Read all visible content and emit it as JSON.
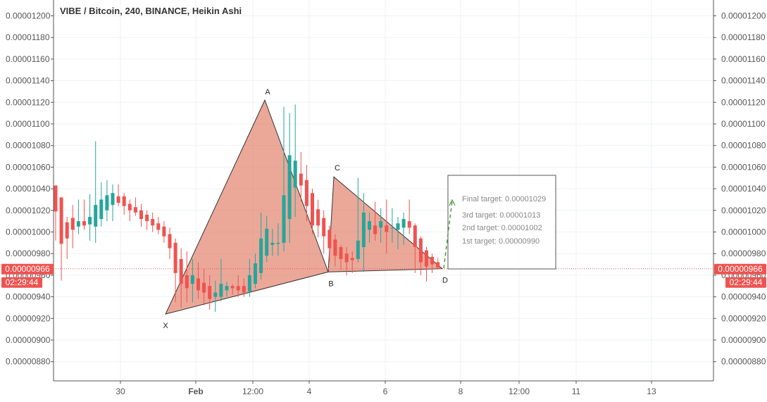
{
  "header": {
    "title": "VIBE / Bitcoin, 240, BINANCE, Heikin Ashi"
  },
  "price_axis": {
    "ticks": [
      "0.00001200",
      "0.00001180",
      "0.00001160",
      "0.00001140",
      "0.00001120",
      "0.00001100",
      "0.00001080",
      "0.00001060",
      "0.00001040",
      "0.00001020",
      "0.00001000",
      "0.00000980",
      "0.00000960",
      "0.00000940",
      "0.00000920",
      "0.00000900",
      "0.00000880"
    ],
    "current_price": "0.00000966",
    "countdown": "02:29:44"
  },
  "time_axis": {
    "labels": [
      {
        "text": "30",
        "bold": false
      },
      {
        "text": "Feb",
        "bold": true
      },
      {
        "text": "12:00",
        "bold": false
      },
      {
        "text": "4",
        "bold": false
      },
      {
        "text": "6",
        "bold": false
      },
      {
        "text": "8",
        "bold": false
      },
      {
        "text": "12:00",
        "bold": false
      },
      {
        "text": "11",
        "bold": false
      },
      {
        "text": "13",
        "bold": false
      }
    ]
  },
  "pattern": {
    "points": [
      {
        "label": "X",
        "price": 9.24e-06
      },
      {
        "label": "A",
        "price": 1.122e-05
      },
      {
        "label": "B",
        "price": 9.63e-06
      },
      {
        "label": "C",
        "price": 1.051e-05
      },
      {
        "label": "D",
        "price": 9.66e-06
      }
    ]
  },
  "targets_box": {
    "lines": [
      "Final target: 0.00001029",
      "3rd target: 0.00001013",
      "2nd target: 0.00001002",
      "1st target: 0.00000990"
    ]
  },
  "colors": {
    "up": "#26a69a",
    "down": "#ef5350",
    "pattern_fill": "#e07a63",
    "price_line": "#ef5350",
    "target_arrow": "#4c9a3c",
    "grid": "#eef1f4"
  },
  "chart_data": {
    "type": "candlestick",
    "title": "VIBE / Bitcoin, 240, BINANCE, Heikin Ashi",
    "ylim": [
      8.75e-06,
      1.205e-05
    ],
    "candles": [
      {
        "o": 1.043e-05,
        "h": 1.043e-05,
        "l": 9.92e-06,
        "c": 1.019e-05
      },
      {
        "o": 1.032e-05,
        "h": 1.032e-05,
        "l": 9.55e-06,
        "c": 9.89e-06
      },
      {
        "o": 1.009e-05,
        "h": 1.014e-05,
        "l": 9.75e-06,
        "c": 9.94e-06
      },
      {
        "o": 1.013e-05,
        "h": 1.025e-05,
        "l": 9.85e-06,
        "c": 1.002e-05
      },
      {
        "o": 1.005e-05,
        "h": 1.03e-05,
        "l": 9.98e-06,
        "c": 1.01e-05
      },
      {
        "o": 1.01e-05,
        "h": 1.03e-05,
        "l": 1.002e-05,
        "c": 1.006e-05
      },
      {
        "o": 1.007e-05,
        "h": 1.035e-05,
        "l": 9.92e-06,
        "c": 1.014e-05
      },
      {
        "o": 1.005e-05,
        "h": 1.084e-05,
        "l": 9.9e-06,
        "c": 1.025e-05
      },
      {
        "o": 1.012e-05,
        "h": 1.046e-05,
        "l": 1.005e-05,
        "c": 1.03e-05
      },
      {
        "o": 1.02e-05,
        "h": 1.048e-05,
        "l": 1.01e-05,
        "c": 1.034e-05
      },
      {
        "o": 1.025e-05,
        "h": 1.044e-05,
        "l": 1.01e-05,
        "c": 1.036e-05
      },
      {
        "o": 1.033e-05,
        "h": 1.044e-05,
        "l": 1.024e-05,
        "c": 1.027e-05
      },
      {
        "o": 1.033e-05,
        "h": 1.036e-05,
        "l": 1.016e-05,
        "c": 1.024e-05
      },
      {
        "o": 1.026e-05,
        "h": 1.03e-05,
        "l": 1.01e-05,
        "c": 1.02e-05
      },
      {
        "o": 1.023e-05,
        "h": 1.032e-05,
        "l": 1.015e-05,
        "c": 1.018e-05
      },
      {
        "o": 1.02e-05,
        "h": 1.026e-05,
        "l": 1.005e-05,
        "c": 1.012e-05
      },
      {
        "o": 1.016e-05,
        "h": 1.02e-05,
        "l": 1.002e-05,
        "c": 1.01e-05
      },
      {
        "o": 1.012e-05,
        "h": 1.018e-05,
        "l": 1e-05,
        "c": 1.006e-05
      },
      {
        "o": 1.008e-05,
        "h": 1.014e-05,
        "l": 9.98e-06,
        "c": 1.002e-05
      },
      {
        "o": 1.005e-05,
        "h": 1.01e-05,
        "l": 9.9e-06,
        "c": 9.96e-06
      },
      {
        "o": 9.98e-06,
        "h": 1.004e-05,
        "l": 9.75e-06,
        "c": 9.85e-06
      },
      {
        "o": 9.9e-06,
        "h": 9.94e-06,
        "l": 9.35e-06,
        "c": 9.62e-06
      },
      {
        "o": 9.75e-06,
        "h": 9.85e-06,
        "l": 9.3e-06,
        "c": 9.52e-06
      },
      {
        "o": 9.6e-06,
        "h": 9.82e-06,
        "l": 9.35e-06,
        "c": 9.48e-06
      },
      {
        "o": 9.52e-06,
        "h": 9.75e-06,
        "l": 9.35e-06,
        "c": 9.6e-06
      },
      {
        "o": 9.57e-06,
        "h": 9.72e-06,
        "l": 9.38e-06,
        "c": 9.46e-06
      },
      {
        "o": 9.53e-06,
        "h": 9.66e-06,
        "l": 9.32e-06,
        "c": 9.44e-06
      },
      {
        "o": 9.5e-06,
        "h": 9.6e-06,
        "l": 9.28e-06,
        "c": 9.38e-06
      },
      {
        "o": 9.4e-06,
        "h": 9.55e-06,
        "l": 9.26e-06,
        "c": 9.44e-06
      },
      {
        "o": 9.4e-06,
        "h": 9.75e-06,
        "l": 9.36e-06,
        "c": 9.52e-06
      },
      {
        "o": 9.46e-06,
        "h": 9.54e-06,
        "l": 9.4e-06,
        "c": 9.5e-06
      },
      {
        "o": 9.5e-06,
        "h": 9.52e-06,
        "l": 9.42e-06,
        "c": 9.48e-06
      },
      {
        "o": 9.5e-06,
        "h": 9.6e-06,
        "l": 9.4e-06,
        "c": 9.46e-06
      },
      {
        "o": 9.5e-06,
        "h": 9.57e-06,
        "l": 9.4e-06,
        "c": 9.44e-06
      },
      {
        "o": 9.45e-06,
        "h": 9.75e-06,
        "l": 9.4e-06,
        "c": 9.6e-06
      },
      {
        "o": 9.52e-06,
        "h": 9.8e-06,
        "l": 9.48e-06,
        "c": 9.71e-06
      },
      {
        "o": 9.62e-06,
        "h": 1.018e-05,
        "l": 9.56e-06,
        "c": 9.94e-06
      },
      {
        "o": 9.78e-06,
        "h": 1.015e-05,
        "l": 9.72e-06,
        "c": 1.003e-05
      },
      {
        "o": 9.88e-06,
        "h": 1.003e-05,
        "l": 9.78e-06,
        "c": 9.9e-06
      },
      {
        "o": 9.89e-06,
        "h": 1.008e-05,
        "l": 9.78e-06,
        "c": 9.9e-06
      },
      {
        "o": 9.9e-06,
        "h": 1.116e-05,
        "l": 9.82e-06,
        "c": 1.034e-05
      },
      {
        "o": 1.012e-05,
        "h": 1.11e-05,
        "l": 9.9e-06,
        "c": 1.071e-05
      },
      {
        "o": 1.041e-05,
        "h": 1.118e-05,
        "l": 1.014e-05,
        "c": 1.066e-05
      },
      {
        "o": 1.054e-05,
        "h": 1.074e-05,
        "l": 1.028e-05,
        "c": 1.043e-05
      },
      {
        "o": 1.048e-05,
        "h": 1.062e-05,
        "l": 1.01e-05,
        "c": 1.024e-05
      },
      {
        "o": 1.036e-05,
        "h": 1.04e-05,
        "l": 9.98e-06,
        "c": 1.006e-05
      },
      {
        "o": 1.021e-05,
        "h": 1.03e-05,
        "l": 9.95e-06,
        "c": 1.006e-05
      },
      {
        "o": 1.013e-05,
        "h": 1.02e-05,
        "l": 9.8e-06,
        "c": 9.96e-06
      },
      {
        "o": 1.002e-05,
        "h": 1.006e-05,
        "l": 9.72e-06,
        "c": 9.85e-06
      },
      {
        "o": 9.93e-06,
        "h": 9.98e-06,
        "l": 9.68e-06,
        "c": 9.78e-06
      },
      {
        "o": 9.86e-06,
        "h": 9.88e-06,
        "l": 9.65e-06,
        "c": 9.75e-06
      },
      {
        "o": 9.8e-06,
        "h": 9.86e-06,
        "l": 9.6e-06,
        "c": 9.72e-06
      },
      {
        "o": 9.76e-06,
        "h": 9.82e-06,
        "l": 9.62e-06,
        "c": 9.74e-06
      },
      {
        "o": 9.75e-06,
        "h": 1.05e-05,
        "l": 9.72e-06,
        "c": 9.92e-06
      },
      {
        "o": 9.86e-06,
        "h": 1.036e-05,
        "l": 9.63e-06,
        "c": 1.018e-05
      },
      {
        "o": 1.002e-05,
        "h": 1.018e-05,
        "l": 9.9e-06,
        "c": 1.01e-05
      },
      {
        "o": 1.006e-05,
        "h": 1.028e-05,
        "l": 9.92e-06,
        "c": 9.98e-06
      },
      {
        "o": 1.004e-05,
        "h": 1.022e-05,
        "l": 9.9e-06,
        "c": 1.01e-05
      },
      {
        "o": 1.006e-05,
        "h": 1.03e-05,
        "l": 9.8e-06,
        "c": 1e-05
      },
      {
        "o": 1.004e-05,
        "h": 1.022e-05,
        "l": 9.9e-06,
        "c": 1.004e-05
      },
      {
        "o": 1.002e-05,
        "h": 1.014e-05,
        "l": 9.84e-06,
        "c": 1.008e-05
      },
      {
        "o": 1.004e-05,
        "h": 1.018e-05,
        "l": 9.88e-06,
        "c": 1.012e-05
      },
      {
        "o": 1.01e-05,
        "h": 1.03e-05,
        "l": 9.98e-06,
        "c": 1.004e-05
      },
      {
        "o": 1.006e-05,
        "h": 1.008e-05,
        "l": 9.62e-06,
        "c": 9.86e-06
      },
      {
        "o": 9.94e-06,
        "h": 9.96e-06,
        "l": 9.6e-06,
        "c": 9.72e-06
      },
      {
        "o": 9.83e-06,
        "h": 9.86e-06,
        "l": 9.54e-06,
        "c": 9.68e-06
      },
      {
        "o": 9.77e-06,
        "h": 9.8e-06,
        "l": 9.62e-06,
        "c": 9.7e-06
      },
      {
        "o": 9.72e-06,
        "h": 9.76e-06,
        "l": 9.66e-06,
        "c": 9.67e-06
      }
    ],
    "series_window": {
      "first_index": 0,
      "visible_bars": 150
    }
  }
}
